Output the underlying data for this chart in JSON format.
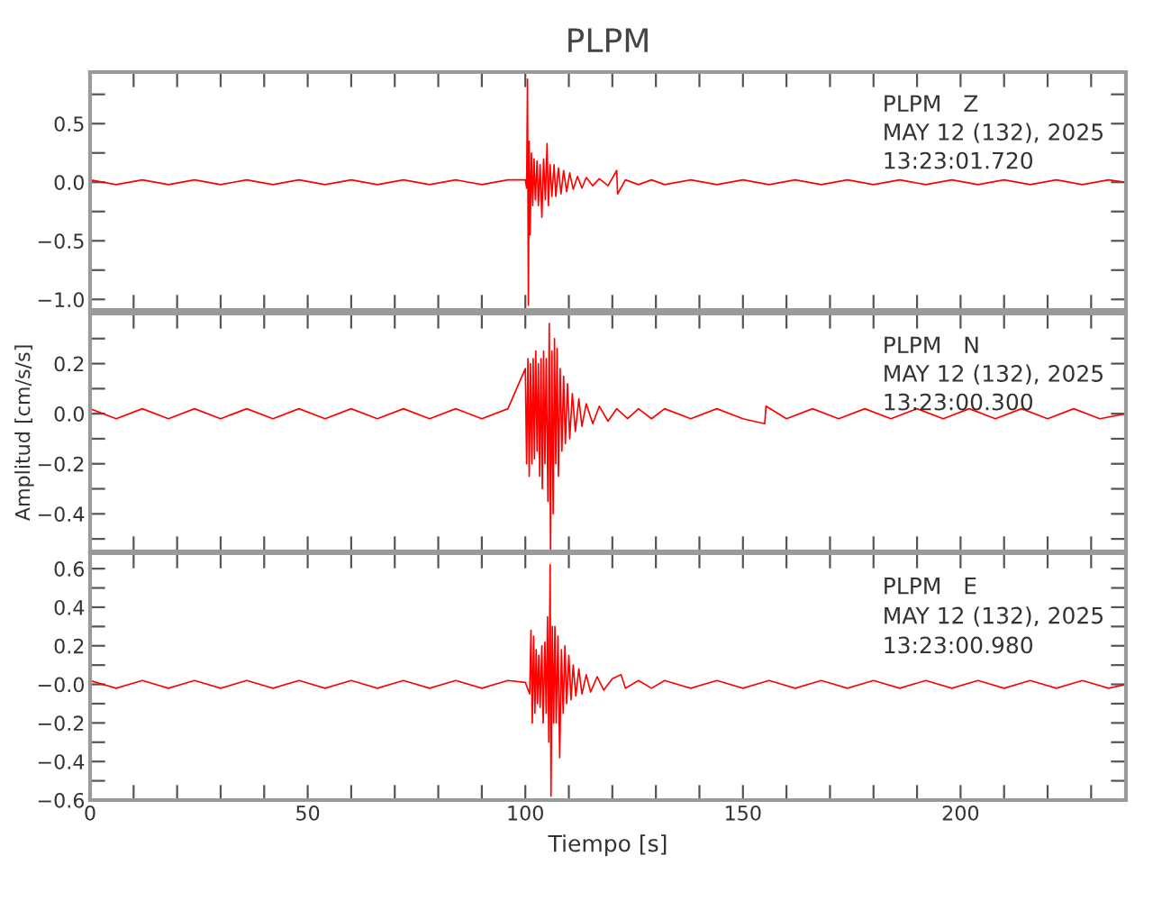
{
  "chart_data": [
    {
      "type": "line",
      "title": "PLPM",
      "tick_labels": "y",
      "marker": "none",
      "line_style": "solid",
      "grid": false,
      "legend": false,
      "annotations": [
        "PLPM   Z",
        "MAY 12 (132), 2025",
        "13:23:01.720"
      ],
      "xlim": [
        0,
        238
      ],
      "xticks": [
        0,
        {
          "value": 10,
          "label": null
        },
        {
          "value": 20,
          "label": null
        },
        {
          "value": 30,
          "label": null
        },
        {
          "value": 40,
          "label": null
        },
        50,
        {
          "value": 60,
          "label": null
        },
        {
          "value": 70,
          "label": null
        },
        {
          "value": 80,
          "label": null
        },
        {
          "value": 90,
          "label": null
        },
        100,
        {
          "value": 110,
          "label": null
        },
        {
          "value": 120,
          "label": null
        },
        {
          "value": 130,
          "label": null
        },
        {
          "value": 140,
          "label": null
        },
        150,
        {
          "value": 160,
          "label": null
        },
        {
          "value": 170,
          "label": null
        },
        {
          "value": 180,
          "label": null
        },
        {
          "value": 190,
          "label": null
        },
        200,
        {
          "value": 210,
          "label": null
        },
        {
          "value": 220,
          "label": null
        },
        {
          "value": 230,
          "label": null
        }
      ],
      "ylim": [
        -1.09,
        0.94
      ],
      "yticks": [
        {
          "value": -1.0,
          "label": "−1.0"
        },
        {
          "value": -0.75,
          "label": null
        },
        {
          "value": -0.5,
          "label": "−0.5"
        },
        {
          "value": -0.25,
          "label": null
        },
        {
          "value": 0,
          "label": "0.0"
        },
        {
          "value": 0.25,
          "label": null
        },
        {
          "value": 0.5,
          "label": "0.5"
        },
        {
          "value": 0.75,
          "label": null
        }
      ],
      "series": [
        {
          "color": "#ff0000",
          "x": [
            0,
            6,
            12,
            18,
            24,
            30,
            36,
            42,
            48,
            54,
            60,
            66,
            72,
            78,
            84,
            90,
            96,
            100.0,
            100.3,
            100.5,
            100.7,
            100.9,
            101.1,
            101.4,
            101.7,
            102.0,
            102.3,
            102.7,
            103.0,
            103.4,
            103.8,
            104.2,
            104.6,
            105.0,
            105.3,
            105.7,
            106.1,
            106.6,
            107.0,
            107.6,
            108.2,
            108.8,
            109.5,
            110.2,
            111,
            112,
            113,
            114,
            115.5,
            117,
            119,
            121.0,
            121.2,
            123,
            126,
            129,
            132,
            138,
            144,
            150,
            156,
            162,
            168,
            174,
            180,
            186,
            192,
            198,
            204,
            210,
            216,
            222,
            228,
            234,
            238
          ],
          "values": [
            0.02,
            -0.02,
            0.02,
            -0.02,
            0.02,
            -0.02,
            0.02,
            -0.02,
            0.02,
            -0.02,
            0.02,
            -0.02,
            0.02,
            -0.02,
            0.02,
            -0.02,
            0.02,
            0.02,
            -0.05,
            0.88,
            -1.05,
            0.35,
            -0.45,
            0.25,
            -0.2,
            0.2,
            -0.15,
            0.18,
            -0.2,
            0.15,
            -0.3,
            0.2,
            -0.15,
            0.33,
            -0.2,
            0.15,
            -0.12,
            0.15,
            -0.12,
            0.12,
            -0.1,
            0.1,
            -0.08,
            0.08,
            -0.06,
            0.05,
            -0.05,
            0.04,
            -0.03,
            0.03,
            -0.03,
            0.1,
            -0.1,
            0.02,
            -0.02,
            0.02,
            -0.02,
            0.02,
            -0.02,
            0.02,
            -0.02,
            0.02,
            -0.02,
            0.02,
            -0.02,
            0.02,
            -0.02,
            0.02,
            -0.02,
            0.02,
            -0.02,
            0.02,
            -0.02,
            0.02,
            0.0
          ]
        }
      ]
    },
    {
      "type": "line",
      "ylabel": "Amplitud [cm/s/s]",
      "tick_labels": "y",
      "marker": "none",
      "line_style": "solid",
      "grid": false,
      "legend": false,
      "annotations": [
        "PLPM   N",
        "MAY 12 (132), 2025",
        "13:23:00.300"
      ],
      "xlim": [
        0,
        238
      ],
      "xticks": [
        0,
        {
          "value": 10,
          "label": null
        },
        {
          "value": 20,
          "label": null
        },
        {
          "value": 30,
          "label": null
        },
        {
          "value": 40,
          "label": null
        },
        50,
        {
          "value": 60,
          "label": null
        },
        {
          "value": 70,
          "label": null
        },
        {
          "value": 80,
          "label": null
        },
        {
          "value": 90,
          "label": null
        },
        100,
        {
          "value": 110,
          "label": null
        },
        {
          "value": 120,
          "label": null
        },
        {
          "value": 130,
          "label": null
        },
        {
          "value": 140,
          "label": null
        },
        150,
        {
          "value": 160,
          "label": null
        },
        {
          "value": 170,
          "label": null
        },
        {
          "value": 180,
          "label": null
        },
        {
          "value": 190,
          "label": null
        },
        200,
        {
          "value": 210,
          "label": null
        },
        {
          "value": 220,
          "label": null
        },
        {
          "value": 230,
          "label": null
        }
      ],
      "ylim": [
        -0.55,
        0.4
      ],
      "yticks": [
        {
          "value": -0.5,
          "label": null
        },
        {
          "value": -0.4,
          "label": "−0.4"
        },
        {
          "value": -0.3,
          "label": null
        },
        {
          "value": -0.2,
          "label": "−0.2"
        },
        {
          "value": -0.1,
          "label": null
        },
        {
          "value": 0,
          "label": "0.0"
        },
        {
          "value": 0.1,
          "label": null
        },
        {
          "value": 0.2,
          "label": "0.2"
        },
        {
          "value": 0.3,
          "label": null
        }
      ],
      "series": [
        {
          "color": "#ff0000",
          "x": [
            0,
            6,
            12,
            18,
            24,
            30,
            36,
            42,
            48,
            54,
            60,
            66,
            72,
            78,
            84,
            90,
            96,
            100.0,
            100.3,
            100.6,
            100.9,
            101.2,
            101.5,
            101.8,
            102.1,
            102.4,
            102.7,
            103.0,
            103.3,
            103.6,
            103.9,
            104.2,
            104.5,
            104.8,
            105.2,
            105.5,
            105.8,
            106.1,
            106.4,
            106.7,
            107.0,
            107.3,
            107.6,
            108.0,
            108.4,
            108.8,
            109.2,
            109.7,
            110.2,
            110.8,
            111.5,
            112.3,
            113,
            114,
            115.5,
            117,
            119,
            121,
            123.5,
            126,
            129,
            132,
            138,
            144,
            150,
            155,
            155.3,
            160,
            166,
            172,
            178,
            184,
            190,
            196,
            202,
            208,
            214,
            220,
            226,
            232,
            238
          ],
          "values": [
            0.02,
            -0.02,
            0.02,
            -0.02,
            0.02,
            -0.02,
            0.02,
            -0.02,
            0.02,
            -0.02,
            0.02,
            -0.02,
            0.02,
            -0.02,
            0.02,
            -0.02,
            0.02,
            0.18,
            -0.2,
            0.22,
            -0.25,
            0.2,
            -0.2,
            0.22,
            -0.18,
            0.25,
            -0.15,
            0.2,
            -0.25,
            0.22,
            -0.3,
            0.25,
            -0.2,
            0.22,
            -0.35,
            0.36,
            -0.55,
            0.25,
            -0.4,
            0.3,
            -0.2,
            0.26,
            -0.25,
            0.18,
            -0.15,
            0.15,
            -0.12,
            0.12,
            -0.1,
            0.08,
            -0.07,
            0.06,
            -0.05,
            0.04,
            -0.04,
            0.03,
            -0.03,
            0.02,
            -0.02,
            0.02,
            -0.02,
            0.02,
            -0.02,
            0.02,
            -0.02,
            -0.04,
            0.03,
            -0.02,
            0.02,
            -0.02,
            0.02,
            -0.02,
            0.02,
            -0.02,
            0.02,
            -0.02,
            0.02,
            -0.02,
            0.02,
            -0.02,
            0.0
          ]
        }
      ]
    },
    {
      "type": "line",
      "xlabel": "Tiempo [s]",
      "marker": "none",
      "line_style": "solid",
      "grid": false,
      "legend": false,
      "annotations": [
        "PLPM   E",
        "MAY 12 (132), 2025",
        "13:23:00.980"
      ],
      "xlim": [
        0,
        238
      ],
      "xticks": [
        0,
        {
          "value": 10,
          "label": null
        },
        {
          "value": 20,
          "label": null
        },
        {
          "value": 30,
          "label": null
        },
        {
          "value": 40,
          "label": null
        },
        50,
        {
          "value": 60,
          "label": null
        },
        {
          "value": 70,
          "label": null
        },
        {
          "value": 80,
          "label": null
        },
        {
          "value": 90,
          "label": null
        },
        100,
        {
          "value": 110,
          "label": null
        },
        {
          "value": 120,
          "label": null
        },
        {
          "value": 130,
          "label": null
        },
        {
          "value": 140,
          "label": null
        },
        150,
        {
          "value": 160,
          "label": null
        },
        {
          "value": 170,
          "label": null
        },
        {
          "value": 180,
          "label": null
        },
        {
          "value": 190,
          "label": null
        },
        200,
        {
          "value": 210,
          "label": null
        },
        {
          "value": 220,
          "label": null
        },
        {
          "value": 230,
          "label": null
        }
      ],
      "ylim": [
        -0.6,
        0.68
      ],
      "yticks": [
        {
          "value": -0.6,
          "label": "−0.6"
        },
        {
          "value": -0.5,
          "label": null
        },
        {
          "value": -0.4,
          "label": "−0.4"
        },
        {
          "value": -0.3,
          "label": null
        },
        {
          "value": -0.2,
          "label": "−0.2"
        },
        {
          "value": -0.1,
          "label": null
        },
        {
          "value": 0,
          "label": "−0.0"
        },
        {
          "value": 0.1,
          "label": null
        },
        {
          "value": 0.2,
          "label": "0.2"
        },
        {
          "value": 0.3,
          "label": null
        },
        {
          "value": 0.4,
          "label": "0.4"
        },
        {
          "value": 0.5,
          "label": null
        },
        {
          "value": 0.6,
          "label": "0.6"
        }
      ],
      "series": [
        {
          "color": "#ff0000",
          "x": [
            0,
            6,
            12,
            18,
            24,
            30,
            36,
            42,
            48,
            54,
            60,
            66,
            72,
            78,
            84,
            90,
            96,
            100.0,
            101.0,
            101.3,
            101.6,
            101.9,
            102.2,
            102.5,
            102.8,
            103.1,
            103.4,
            103.8,
            104.1,
            104.5,
            104.8,
            105.1,
            105.4,
            105.7,
            105.9,
            106.2,
            106.5,
            106.8,
            107.1,
            107.5,
            107.9,
            108.3,
            108.7,
            109.1,
            109.5,
            110,
            110.5,
            111,
            111.6,
            112.3,
            113,
            114,
            115,
            116.5,
            118,
            120,
            122,
            123,
            126,
            129,
            132,
            138,
            144,
            150,
            156,
            162,
            168,
            174,
            180,
            186,
            192,
            198,
            204,
            210,
            216,
            222,
            228,
            234,
            238
          ],
          "values": [
            0.02,
            -0.02,
            0.02,
            -0.02,
            0.02,
            -0.02,
            0.02,
            -0.02,
            0.02,
            -0.02,
            0.02,
            -0.02,
            0.02,
            -0.02,
            0.02,
            -0.02,
            0.02,
            0.01,
            -0.05,
            0.28,
            -0.2,
            0.25,
            -0.15,
            0.18,
            -0.1,
            0.15,
            -0.12,
            0.2,
            -0.2,
            0.22,
            -0.15,
            0.35,
            -0.3,
            0.62,
            -0.58,
            0.3,
            -0.2,
            0.3,
            -0.2,
            0.25,
            -0.38,
            0.18,
            -0.15,
            0.2,
            -0.1,
            0.15,
            -0.08,
            0.1,
            -0.06,
            0.08,
            -0.05,
            0.05,
            -0.04,
            0.04,
            -0.03,
            0.03,
            0.05,
            -0.02,
            0.02,
            -0.02,
            0.02,
            -0.02,
            0.02,
            -0.02,
            0.02,
            -0.02,
            0.02,
            -0.02,
            0.02,
            -0.02,
            0.02,
            -0.02,
            0.02,
            -0.02,
            0.02,
            -0.02,
            0.02,
            -0.02,
            0.0
          ]
        }
      ]
    }
  ]
}
